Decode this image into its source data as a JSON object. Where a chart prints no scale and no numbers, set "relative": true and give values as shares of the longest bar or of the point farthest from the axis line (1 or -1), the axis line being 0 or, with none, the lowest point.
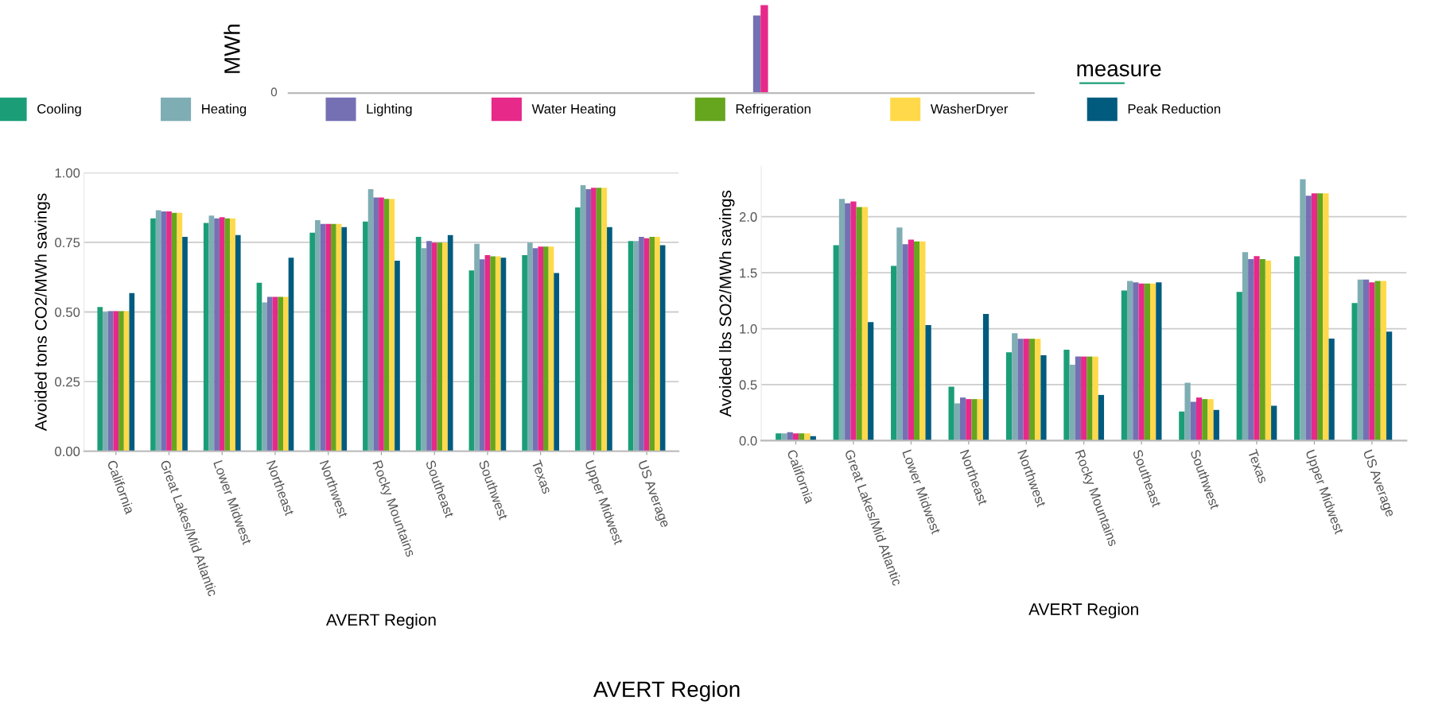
{
  "chart_data": [
    {
      "type": "bar",
      "ylabel": "Avoided tons CO2/MWh savings",
      "xlabel": "AVERT Region",
      "grid": "y",
      "legend": "top",
      "legend_title": "measure",
      "ylim": [
        0,
        1.0
      ],
      "yticks": [
        {
          "value": 0,
          "label": "0.00"
        },
        {
          "value": 0.25,
          "label": "0.25"
        },
        {
          "value": 0.5,
          "label": "0.50"
        },
        {
          "value": 0.75,
          "label": "0.75"
        },
        {
          "value": 1,
          "label": "1.00"
        }
      ],
      "categories": [
        "California",
        "Great Lakes/Mid Atlantic",
        "Lower Midwest",
        "Northeast",
        "Northwest",
        "Rocky Mountains",
        "Southeast",
        "Southwest",
        "Texas",
        "Upper Midwest",
        "US Average"
      ],
      "series": [
        {
          "name": "Cooling",
          "color": "#1b9e77",
          "values": [
            0.518,
            0.836,
            0.82,
            0.605,
            0.785,
            0.825,
            0.77,
            0.649,
            0.704,
            0.875,
            0.755
          ]
        },
        {
          "name": "Heating",
          "color": "#7fadb4",
          "values": [
            0.5,
            0.865,
            0.846,
            0.534,
            0.83,
            0.941,
            0.729,
            0.745,
            0.749,
            0.955,
            0.755
          ]
        },
        {
          "name": "Lighting",
          "color": "#7570b3",
          "values": [
            0.503,
            0.861,
            0.836,
            0.554,
            0.816,
            0.911,
            0.755,
            0.689,
            0.729,
            0.941,
            0.77
          ]
        },
        {
          "name": "Water Heating",
          "color": "#e7298a",
          "values": [
            0.503,
            0.861,
            0.84,
            0.554,
            0.816,
            0.911,
            0.749,
            0.704,
            0.735,
            0.946,
            0.765
          ]
        },
        {
          "name": "Refrigeration",
          "color": "#66a61e",
          "values": [
            0.503,
            0.856,
            0.836,
            0.554,
            0.816,
            0.906,
            0.749,
            0.7,
            0.735,
            0.946,
            0.77
          ]
        },
        {
          "name": "WasherDryer",
          "color": "#ffd94a",
          "values": [
            0.503,
            0.856,
            0.836,
            0.554,
            0.816,
            0.906,
            0.749,
            0.7,
            0.735,
            0.946,
            0.77
          ]
        },
        {
          "name": "Peak Reduction",
          "color": "#005b7f",
          "values": [
            0.568,
            0.77,
            0.776,
            0.695,
            0.805,
            0.684,
            0.776,
            0.695,
            0.64,
            0.805,
            0.74
          ]
        }
      ]
    },
    {
      "type": "bar",
      "ylabel": "Avoided lbs SO2/MWh savings",
      "xlabel": "AVERT Region",
      "grid": "y",
      "ylim": [
        0,
        2.45
      ],
      "yticks": [
        {
          "value": 0,
          "label": "0.0"
        },
        {
          "value": 0.5,
          "label": "0.5"
        },
        {
          "value": 1,
          "label": "1.0"
        },
        {
          "value": 1.5,
          "label": "1.5"
        },
        {
          "value": 2,
          "label": "2.0"
        }
      ],
      "categories": [
        "California",
        "Great Lakes/Mid Atlantic",
        "Lower Midwest",
        "Northeast",
        "Northwest",
        "Rocky Mountains",
        "Southeast",
        "Southwest",
        "Texas",
        "Upper Midwest",
        "US Average"
      ],
      "series": [
        {
          "color": "#1b9e77",
          "values": [
            0.064,
            1.745,
            1.561,
            0.482,
            0.789,
            0.812,
            1.341,
            0.26,
            1.329,
            1.646,
            1.23
          ]
        },
        {
          "color": "#7fadb4",
          "values": [
            0.064,
            2.16,
            1.903,
            0.333,
            0.959,
            0.678,
            1.426,
            0.517,
            1.684,
            2.335,
            1.438
          ]
        },
        {
          "color": "#7570b3",
          "values": [
            0.076,
            2.12,
            1.754,
            0.385,
            0.909,
            0.751,
            1.414,
            0.347,
            1.622,
            2.187,
            1.438
          ]
        },
        {
          "color": "#e7298a",
          "values": [
            0.064,
            2.137,
            1.795,
            0.371,
            0.909,
            0.751,
            1.403,
            0.385,
            1.648,
            2.21,
            1.414
          ]
        },
        {
          "color": "#66a61e",
          "values": [
            0.064,
            2.087,
            1.78,
            0.371,
            0.909,
            0.751,
            1.403,
            0.371,
            1.622,
            2.21,
            1.426
          ]
        },
        {
          "color": "#ffd94a",
          "values": [
            0.064,
            2.087,
            1.78,
            0.371,
            0.909,
            0.751,
            1.403,
            0.371,
            1.61,
            2.21,
            1.426
          ]
        },
        {
          "color": "#005b7f",
          "values": [
            0.04,
            1.058,
            1.032,
            1.131,
            0.763,
            0.408,
            1.414,
            0.274,
            0.312,
            0.911,
            0.973
          ]
        }
      ]
    },
    {
      "type": "bar",
      "relative": true,
      "ylabel": "MWh",
      "xlabel": "AVERT Region",
      "annotations": [
        "0"
      ],
      "categories": [
        null
      ],
      "series": [
        {
          "color": "#7570b3",
          "values": [
            0.88
          ]
        },
        {
          "color": "#e7298a",
          "values": [
            1
          ]
        }
      ]
    }
  ]
}
